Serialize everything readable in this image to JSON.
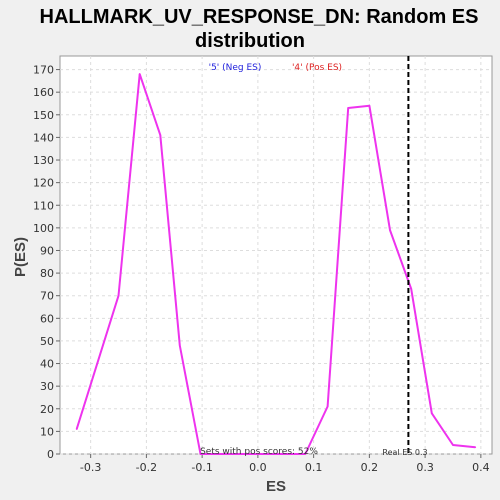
{
  "chart_data": {
    "type": "line",
    "title_line1": "HALLMARK_UV_RESPONSE_DN: Random ES",
    "title_line2": "distribution",
    "xlabel": "ES",
    "ylabel": "P(ES)",
    "xlim": [
      -0.355,
      0.42
    ],
    "ylim": [
      0,
      176
    ],
    "x_ticks": [
      -0.3,
      -0.2,
      -0.1,
      0.0,
      0.1,
      0.2,
      0.3,
      0.4
    ],
    "x_tick_labels": [
      "-0.3",
      "-0.2",
      "-0.1",
      "0.0",
      "0.1",
      "0.2",
      "0.3",
      "0.4"
    ],
    "y_ticks": [
      0,
      10,
      20,
      30,
      40,
      50,
      60,
      70,
      80,
      90,
      100,
      110,
      120,
      130,
      140,
      150,
      160,
      170
    ],
    "y_tick_labels": [
      "0",
      "10",
      "20",
      "30",
      "40",
      "50",
      "60",
      "70",
      "80",
      "90",
      "100",
      "110",
      "120",
      "130",
      "140",
      "150",
      "160",
      "170"
    ],
    "grid": true,
    "series": [
      {
        "color": "#ee33ee",
        "x": [
          -0.325,
          -0.25,
          -0.212,
          -0.175,
          -0.14,
          -0.103,
          -0.065,
          0.0,
          0.05,
          0.085,
          0.125,
          0.162,
          0.2,
          0.237,
          0.275,
          0.312,
          0.35,
          0.39
        ],
        "y": [
          11,
          70,
          168,
          141,
          48,
          0,
          0,
          0,
          0,
          0,
          21,
          153,
          154,
          99,
          73,
          18,
          4,
          3
        ]
      }
    ],
    "real_es": 0.27,
    "annotations": {
      "neg_label": "'5' (Neg ES)",
      "neg_color": "#2222dd",
      "pos_label": "'4' (Pos ES)",
      "pos_color": "#dd2222",
      "pos_scores": "Sets with pos scores: 52%",
      "real_es_label": "Real ES 0.3"
    }
  }
}
